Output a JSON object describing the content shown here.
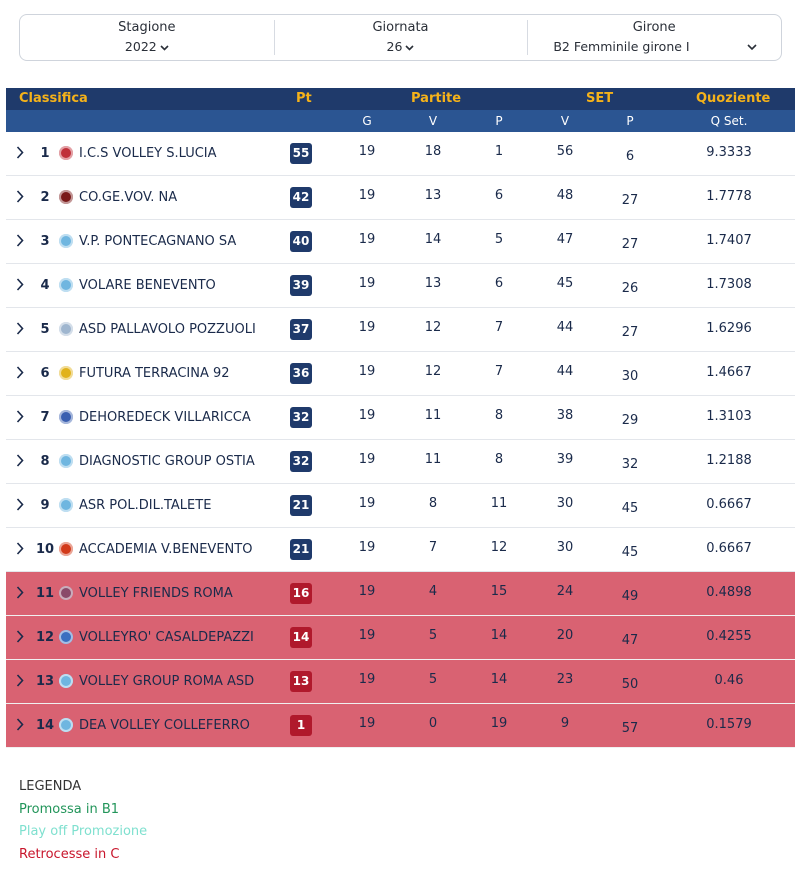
{
  "filters": {
    "season": {
      "label": "Stagione",
      "value": "2022"
    },
    "matchday": {
      "label": "Giornata",
      "value": "26"
    },
    "group": {
      "label": "Girone",
      "value": "B2 Femminile girone I"
    }
  },
  "table": {
    "header": {
      "classifica": "Classifica",
      "pt": "Pt",
      "partite": "Partite",
      "set": "SET",
      "quoziente": "Quoziente",
      "g": "G",
      "v": "V",
      "p": "P",
      "sv": "V",
      "sp": "P",
      "qset": "Q Set."
    },
    "rows": [
      {
        "pos": "1",
        "team": "I.C.S VOLLEY S.LUCIA",
        "pt": "55",
        "g": "19",
        "v": "18",
        "p": "1",
        "sv": "56",
        "sp": "6",
        "q": "9.3333",
        "logo": "#c0303a",
        "relegated": false
      },
      {
        "pos": "2",
        "team": "CO.GE.VOV. NA",
        "pt": "42",
        "g": "19",
        "v": "13",
        "p": "6",
        "sv": "48",
        "sp": "27",
        "q": "1.7778",
        "logo": "#7a1a1a",
        "relegated": false
      },
      {
        "pos": "3",
        "team": "V.P. PONTECAGNANO SA",
        "pt": "40",
        "g": "19",
        "v": "14",
        "p": "5",
        "sv": "47",
        "sp": "27",
        "q": "1.7407",
        "logo": "#6fb6e0",
        "relegated": false
      },
      {
        "pos": "4",
        "team": "VOLARE BENEVENTO",
        "pt": "39",
        "g": "19",
        "v": "13",
        "p": "6",
        "sv": "45",
        "sp": "26",
        "q": "1.7308",
        "logo": "#6fb6e0",
        "relegated": false
      },
      {
        "pos": "5",
        "team": "ASD PALLAVOLO POZZUOLI",
        "pt": "37",
        "g": "19",
        "v": "12",
        "p": "7",
        "sv": "44",
        "sp": "27",
        "q": "1.6296",
        "logo": "#9fb6cf",
        "relegated": false
      },
      {
        "pos": "6",
        "team": "FUTURA TERRACINA 92",
        "pt": "36",
        "g": "19",
        "v": "12",
        "p": "7",
        "sv": "44",
        "sp": "30",
        "q": "1.4667",
        "logo": "#e1b21b",
        "relegated": false
      },
      {
        "pos": "7",
        "team": "DEHOREDECK VILLARICCA",
        "pt": "32",
        "g": "19",
        "v": "11",
        "p": "8",
        "sv": "38",
        "sp": "29",
        "q": "1.3103",
        "logo": "#3a5fb0",
        "relegated": false
      },
      {
        "pos": "8",
        "team": "DIAGNOSTIC GROUP OSTIA",
        "pt": "32",
        "g": "19",
        "v": "11",
        "p": "8",
        "sv": "39",
        "sp": "32",
        "q": "1.2188",
        "logo": "#6fb6e0",
        "relegated": false
      },
      {
        "pos": "9",
        "team": "ASR POL.DIL.TALETE",
        "pt": "21",
        "g": "19",
        "v": "8",
        "p": "11",
        "sv": "30",
        "sp": "45",
        "q": "0.6667",
        "logo": "#6fb6e0",
        "relegated": false
      },
      {
        "pos": "10",
        "team": "ACCADEMIA V.BENEVENTO",
        "pt": "21",
        "g": "19",
        "v": "7",
        "p": "12",
        "sv": "30",
        "sp": "45",
        "q": "0.6667",
        "logo": "#d23a1a",
        "relegated": false
      },
      {
        "pos": "11",
        "team": "VOLLEY FRIENDS ROMA",
        "pt": "16",
        "g": "19",
        "v": "4",
        "p": "15",
        "sv": "24",
        "sp": "49",
        "q": "0.4898",
        "logo": "#8a4a6a",
        "relegated": true
      },
      {
        "pos": "12",
        "team": "VOLLEYRO' CASALDEPAZZI",
        "pt": "14",
        "g": "19",
        "v": "5",
        "p": "14",
        "sv": "20",
        "sp": "47",
        "q": "0.4255",
        "logo": "#3a6fc0",
        "relegated": true
      },
      {
        "pos": "13",
        "team": "VOLLEY GROUP ROMA ASD",
        "pt": "13",
        "g": "19",
        "v": "5",
        "p": "14",
        "sv": "23",
        "sp": "50",
        "q": "0.46",
        "logo": "#6fb6e0",
        "relegated": true
      },
      {
        "pos": "14",
        "team": "DEA VOLLEY COLLEFERRO",
        "pt": "1",
        "g": "19",
        "v": "0",
        "p": "19",
        "sv": "9",
        "sp": "57",
        "q": "0.1579",
        "logo": "#6fb6e0",
        "relegated": true
      }
    ]
  },
  "legend": {
    "title": "LEGENDA",
    "b1": "Promossa in B1",
    "playoff": "Play off Promozione",
    "c": "Retrocesse in C"
  }
}
